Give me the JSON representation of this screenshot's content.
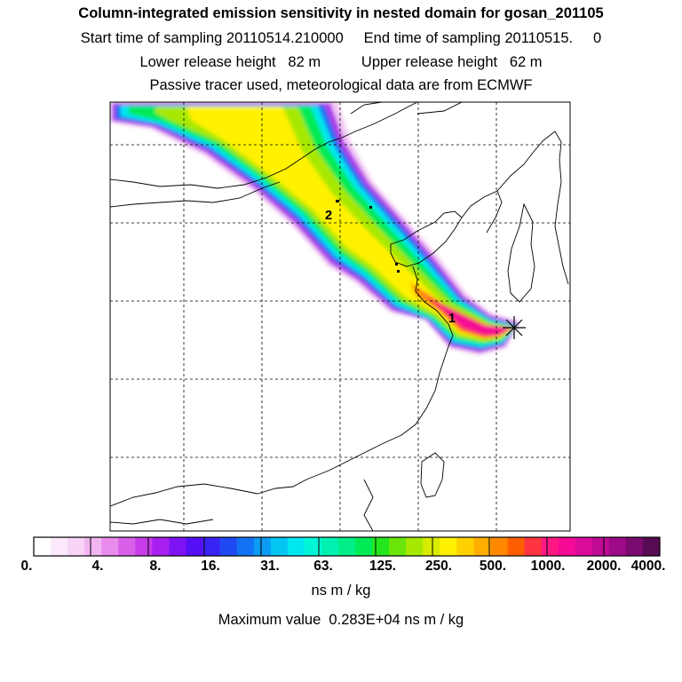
{
  "chart_data": {
    "type": "heatmap",
    "title": "Column-integrated emission sensitivity in nested domain for gosan_201105",
    "subtitle_lines": [
      "Start time of sampling 20110514.210000     End time of sampling 20110515.     0",
      "Lower release height   82 m          Upper release height   62 m",
      "Passive tracer used, meteorological data are from ECMWF"
    ],
    "colorbar_ticks": [
      "0.",
      "4.",
      "8.",
      "16.",
      "31.",
      "63.",
      "125.",
      "250.",
      "500.",
      "1000.",
      "2000.",
      "4000."
    ],
    "colorbar_units": "ns m / kg",
    "colorbar_scale": "logarithmic",
    "max_value_text": "Maximum value  0.283E+04 ns m / kg",
    "point_labels": [
      "1",
      "2"
    ],
    "receptor_marker": "asterisk",
    "plume_direction": "northwest to southeast, ending at receptor",
    "grid": true
  },
  "colors": {
    "colorbar": [
      "#ffffff",
      "#fce9fb",
      "#f7d3f6",
      "#f1b6f1",
      "#e98bec",
      "#d95fe8",
      "#c73be8",
      "#a71ff0",
      "#7d13f5",
      "#5510f7",
      "#3a23f5",
      "#1f49f3",
      "#1272f3",
      "#0b9bf4",
      "#05c5f3",
      "#00e8ef",
      "#00f6d6",
      "#00f1b0",
      "#00ee88",
      "#00ea55",
      "#23e71d",
      "#6ae60a",
      "#a7e800",
      "#d7ec00",
      "#fff100",
      "#ffd100",
      "#ffae00",
      "#ff8800",
      "#ff5e00",
      "#ff3440",
      "#ff1784",
      "#f50a95",
      "#dc0a9a",
      "#bf0a95",
      "#9d0a88",
      "#7a0b6f",
      "#560b52"
    ]
  }
}
